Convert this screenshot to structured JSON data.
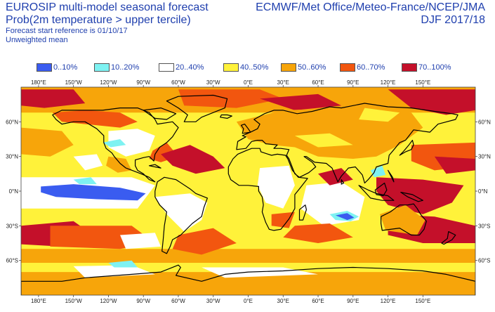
{
  "header": {
    "title_line1": "EUROSIP multi-model seasonal forecast",
    "title_line2": "Prob(2m temperature > upper tercile)",
    "subtitle_line1": "Forecast start reference is 01/10/17",
    "subtitle_line2": "Unweighted mean",
    "centres": "ECMWF/Met Office/Meteo-France/NCEP/JMA",
    "season": "DJF 2017/18"
  },
  "legend": [
    {
      "label": "0..10%",
      "color": "#3a5cf0"
    },
    {
      "label": "10..20%",
      "color": "#7ef2f2"
    },
    {
      "label": "20..40%",
      "color": "#ffffff"
    },
    {
      "label": "40..50%",
      "color": "#fff23a"
    },
    {
      "label": "50..60%",
      "color": "#f7a50a"
    },
    {
      "label": "60..70%",
      "color": "#f2560f"
    },
    {
      "label": "70..100%",
      "color": "#c4102a"
    }
  ],
  "map": {
    "x_ticks": [
      "180°E",
      "150°W",
      "120°W",
      "90°W",
      "60°W",
      "30°W",
      "0°E",
      "30°E",
      "60°E",
      "90°E",
      "120°E",
      "150°E"
    ],
    "y_ticks": [
      "60°N",
      "30°N",
      "0°N",
      "30°S",
      "60°S"
    ],
    "colors": {
      "very_low": "#3a5cf0",
      "low": "#7ef2f2",
      "neutral": "#ffffff",
      "mid": "#fff23a",
      "high": "#f7a50a",
      "higher": "#f2560f",
      "highest": "#c4102a",
      "coast": "#000000"
    }
  }
}
